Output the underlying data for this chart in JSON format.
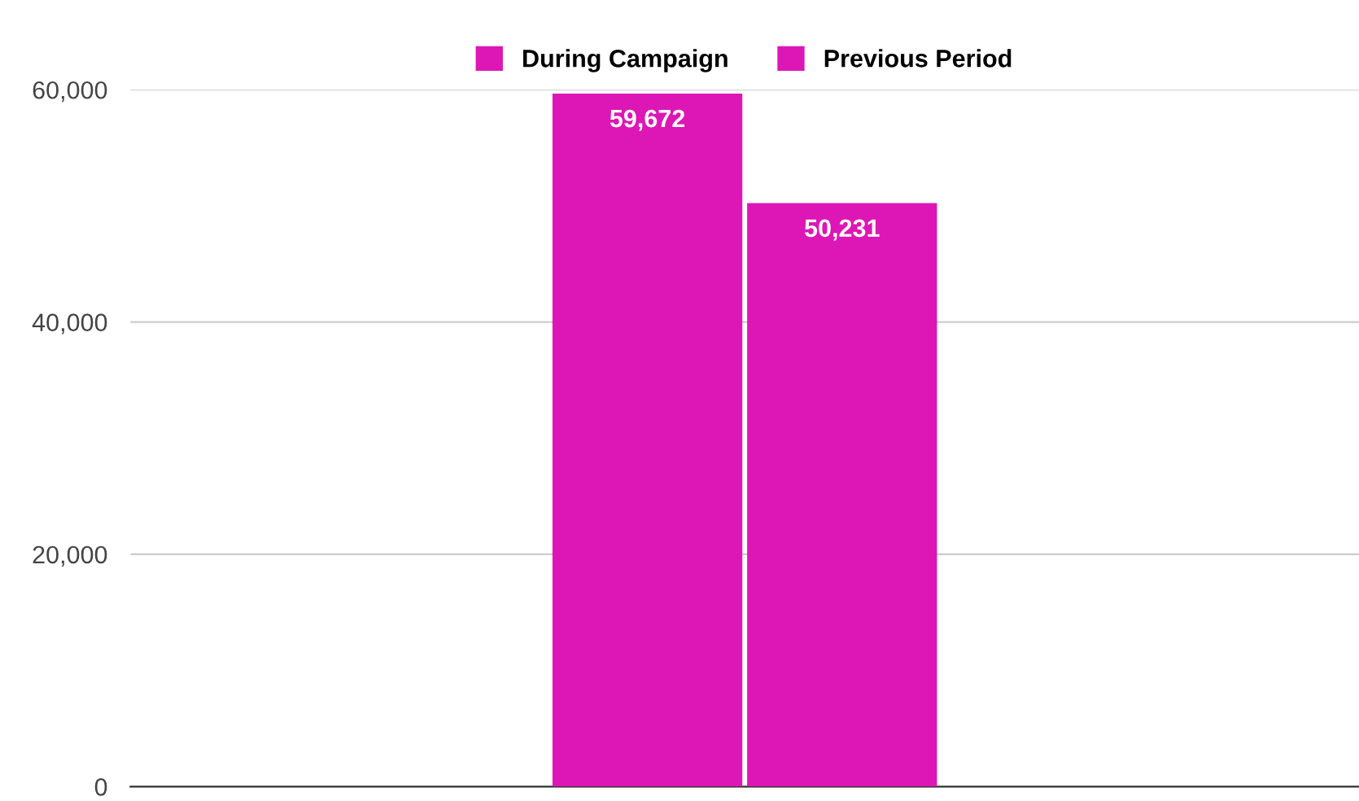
{
  "chart_data": {
    "type": "bar",
    "categories": [
      null
    ],
    "series": [
      {
        "name": "During Campaign",
        "color": "#dd17b5",
        "values": [
          59672
        ],
        "value_labels": [
          "59,672"
        ]
      },
      {
        "name": "Previous Period",
        "color": "#dd17b5",
        "values": [
          50231
        ],
        "value_labels": [
          "50,231"
        ]
      }
    ],
    "ylim": [
      0,
      60000
    ],
    "yticks": [
      {
        "value": 0,
        "label": "0"
      },
      {
        "value": 20000,
        "label": "20,000"
      },
      {
        "value": 40000,
        "label": "40,000"
      },
      {
        "value": 60000,
        "label": "60,000"
      }
    ],
    "grid": "y",
    "legend": "top"
  }
}
